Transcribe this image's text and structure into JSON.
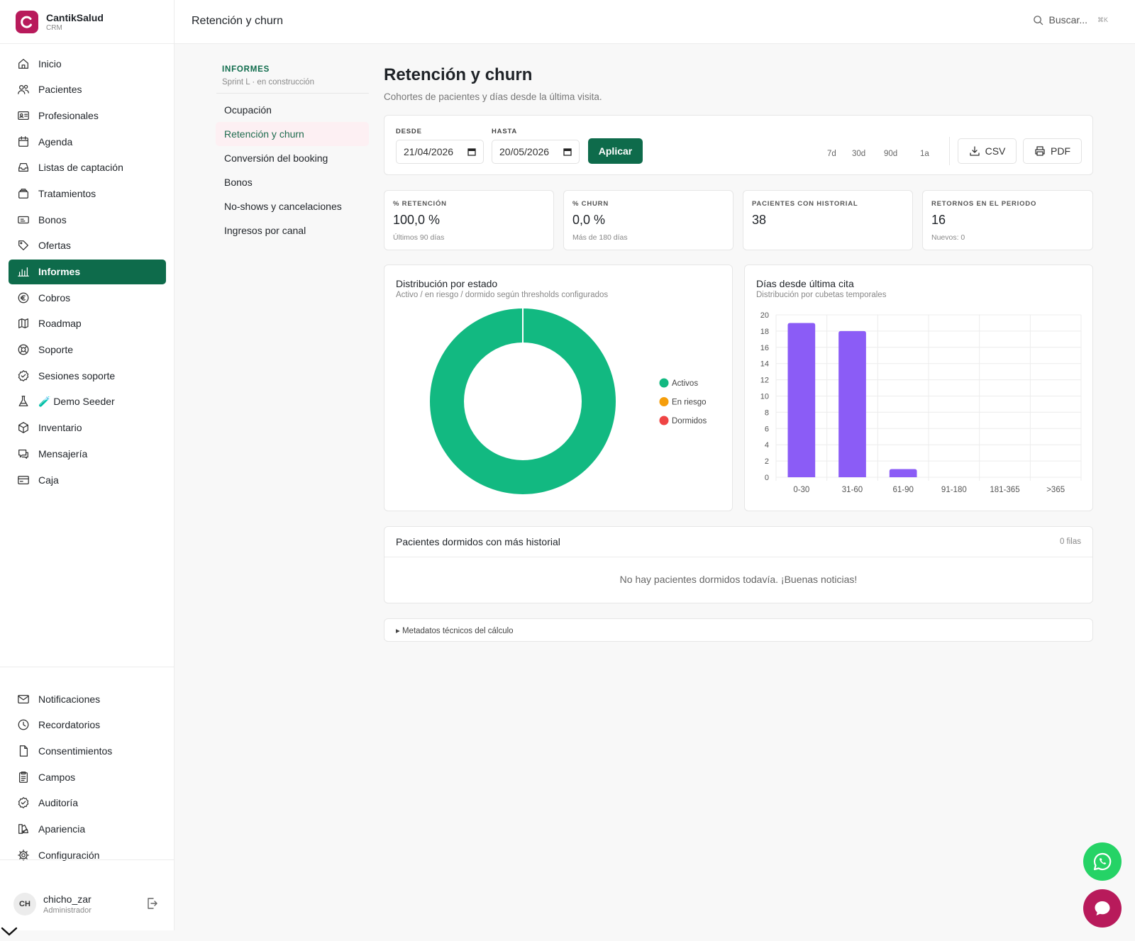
{
  "brand": {
    "name": "CantikSalud",
    "sub": "CRM"
  },
  "topbar": {
    "title": "Retención y churn",
    "search_placeholder": "Buscar...",
    "search_shortcut": "⌘K"
  },
  "sidebar": {
    "items": [
      {
        "label": "Inicio",
        "icon": "home-icon"
      },
      {
        "label": "Pacientes",
        "icon": "users-icon"
      },
      {
        "label": "Profesionales",
        "icon": "id-card-icon"
      },
      {
        "label": "Agenda",
        "icon": "calendar-icon"
      },
      {
        "label": "Listas de captación",
        "icon": "inbox-icon"
      },
      {
        "label": "Tratamientos",
        "icon": "stack-icon"
      },
      {
        "label": "Bonos",
        "icon": "ticket-icon"
      },
      {
        "label": "Ofertas",
        "icon": "tag-icon"
      },
      {
        "label": "Informes",
        "icon": "bar-chart-icon",
        "active": true
      },
      {
        "label": "Cobros",
        "icon": "euro-icon"
      },
      {
        "label": "Roadmap",
        "icon": "map-icon"
      },
      {
        "label": "Soporte",
        "icon": "lifebuoy-icon"
      },
      {
        "label": "Sesiones soporte",
        "icon": "check-badge-icon"
      },
      {
        "label": "🧪 Demo Seeder",
        "icon": "flask-icon"
      },
      {
        "label": "Inventario",
        "icon": "box-icon"
      },
      {
        "label": "Mensajería",
        "icon": "chat-icon"
      },
      {
        "label": "Caja",
        "icon": "card-icon"
      }
    ],
    "bottom_items": [
      {
        "label": "Notificaciones",
        "icon": "mail-icon"
      },
      {
        "label": "Recordatorios",
        "icon": "clock-icon"
      },
      {
        "label": "Consentimientos",
        "icon": "file-icon"
      },
      {
        "label": "Campos",
        "icon": "clipboard-icon"
      },
      {
        "label": "Auditoría",
        "icon": "shield-check-icon"
      },
      {
        "label": "Apariencia",
        "icon": "palette-icon"
      },
      {
        "label": "Configuración",
        "icon": "gear-icon"
      }
    ]
  },
  "user": {
    "initials": "CH",
    "name": "chicho_zar",
    "role": "Administrador"
  },
  "subnav": {
    "title": "INFORMES",
    "subtitle": "Sprint L · en construcción",
    "items": [
      {
        "label": "Ocupación"
      },
      {
        "label": "Retención y churn",
        "active": true
      },
      {
        "label": "Conversión del booking"
      },
      {
        "label": "Bonos"
      },
      {
        "label": "No-shows y cancelaciones"
      },
      {
        "label": "Ingresos por canal"
      }
    ]
  },
  "page": {
    "title": "Retención y churn",
    "subtitle": "Cohortes de pacientes y días desde la última visita."
  },
  "filters": {
    "from_label": "DESDE",
    "from_value": "21/04/2026",
    "to_label": "HASTA",
    "to_value": "20/05/2026",
    "apply_label": "Aplicar",
    "ranges": [
      "7d",
      "30d",
      "90d",
      "1a"
    ],
    "csv_label": "CSV",
    "pdf_label": "PDF"
  },
  "kpis": [
    {
      "label": "% RETENCIÓN",
      "value": "100,0 %",
      "hint": "Últimos 90 días"
    },
    {
      "label": "% CHURN",
      "value": "0,0 %",
      "hint": "Más de 180 días"
    },
    {
      "label": "PACIENTES CON HISTORIAL",
      "value": "38",
      "hint": ""
    },
    {
      "label": "RETORNOS EN EL PERIODO",
      "value": "16",
      "hint": "Nuevos: 0"
    }
  ],
  "chart_data": [
    {
      "type": "pie",
      "title": "Distribución por estado",
      "subtitle": "Activo / en riesgo / dormido según thresholds configurados",
      "categories": [
        "Activos",
        "En riesgo",
        "Dormidos"
      ],
      "values": [
        100,
        0,
        0
      ],
      "colors": [
        "#12b981",
        "#f59e0b",
        "#ef4444"
      ],
      "legend": "right"
    },
    {
      "type": "bar",
      "title": "Días desde última cita",
      "subtitle": "Distribución por cubetas temporales",
      "categories": [
        "0-30",
        "31-60",
        "61-90",
        "91-180",
        "181-365",
        ">365"
      ],
      "values": [
        19,
        18,
        1,
        0,
        0,
        0
      ],
      "ylim": [
        0,
        20
      ],
      "yticks": [
        0,
        2,
        4,
        6,
        8,
        10,
        12,
        14,
        16,
        18,
        20
      ],
      "color": "#8b5cf6",
      "grid": true
    }
  ],
  "table": {
    "title": "Pacientes dormidos con más historial",
    "count": "0 filas",
    "empty": "No hay pacientes dormidos todavía. ¡Buenas noticias!"
  },
  "meta": {
    "label": "▸ Metadatos técnicos del cálculo"
  },
  "colors": {
    "primary": "#0e6b4b",
    "brand": "#b81a5b",
    "whatsapp": "#25d366"
  }
}
